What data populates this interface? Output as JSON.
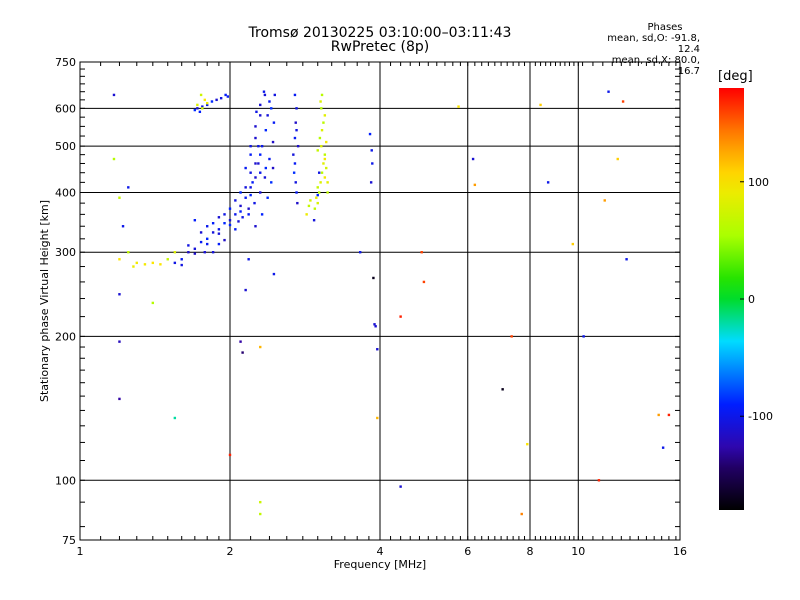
{
  "chart_data": {
    "type": "scatter",
    "title": "Tromsø 20130225 03:10:00–03:11:43",
    "subtitle": "RwPretec (8p)",
    "xlabel": "Frequency [MHz]",
    "ylabel": "Stationary phase Virtual Height [km]",
    "x_scale": "log",
    "y_scale": "log",
    "xlim": [
      1,
      16
    ],
    "ylim": [
      75,
      750
    ],
    "x_ticks": [
      1,
      2,
      4,
      6,
      8,
      10,
      16
    ],
    "y_ticks": [
      75,
      100,
      200,
      300,
      400,
      500,
      600,
      750
    ],
    "grid": true,
    "phases": {
      "heading": "Phases",
      "line_o": "mean, sd,O: -91.8, 12.4",
      "line_x": "mean, sd,X:  80.0, 16.7"
    },
    "colorbar": {
      "title": "[deg]",
      "ticks": [
        100,
        0,
        -100
      ],
      "range": [
        -180,
        180
      ]
    },
    "series": [
      {
        "trace": "O",
        "points": [
          [
            1.55,
            285
          ],
          [
            1.6,
            290
          ],
          [
            1.65,
            300
          ],
          [
            1.7,
            305
          ],
          [
            1.75,
            315
          ],
          [
            1.8,
            320
          ],
          [
            1.85,
            330
          ],
          [
            1.9,
            335
          ],
          [
            1.95,
            345
          ],
          [
            2.0,
            350
          ],
          [
            2.05,
            360
          ],
          [
            2.1,
            375
          ],
          [
            2.15,
            390
          ],
          [
            2.2,
            410
          ],
          [
            2.25,
            430
          ],
          [
            1.6,
            282
          ],
          [
            1.7,
            298
          ],
          [
            1.8,
            312
          ],
          [
            1.9,
            328
          ],
          [
            2.0,
            342
          ],
          [
            2.1,
            365
          ],
          [
            2.2,
            395
          ],
          [
            2.3,
            440
          ],
          [
            1.65,
            310
          ],
          [
            1.75,
            330
          ],
          [
            1.85,
            345
          ],
          [
            1.95,
            360
          ],
          [
            2.05,
            385
          ],
          [
            2.15,
            410
          ],
          [
            2.25,
            460
          ],
          [
            1.7,
            350
          ],
          [
            1.8,
            340
          ],
          [
            1.9,
            355
          ],
          [
            2.0,
            370
          ],
          [
            2.1,
            400
          ],
          [
            2.2,
            440
          ],
          [
            2.3,
            480
          ],
          [
            2.15,
            450
          ],
          [
            2.2,
            480
          ],
          [
            2.2,
            500
          ],
          [
            2.25,
            520
          ],
          [
            2.25,
            550
          ],
          [
            2.3,
            580
          ],
          [
            2.3,
            610
          ],
          [
            2.35,
            640
          ],
          [
            2.22,
            420
          ],
          [
            2.28,
            460
          ],
          [
            2.32,
            500
          ],
          [
            2.36,
            540
          ],
          [
            2.38,
            580
          ],
          [
            2.4,
            620
          ],
          [
            2.34,
            650
          ],
          [
            2.42,
            600
          ],
          [
            2.18,
            360
          ],
          [
            2.24,
            380
          ],
          [
            2.3,
            400
          ],
          [
            2.35,
            430
          ],
          [
            2.4,
            470
          ],
          [
            2.44,
            510
          ],
          [
            2.45,
            560
          ],
          [
            2.46,
            640
          ],
          [
            2.25,
            340
          ],
          [
            2.32,
            360
          ],
          [
            2.38,
            390
          ],
          [
            2.42,
            420
          ],
          [
            2.36,
            450
          ],
          [
            2.28,
            500
          ],
          [
            2.26,
            590
          ],
          [
            2.44,
            450
          ],
          [
            2.68,
            480
          ],
          [
            2.7,
            520
          ],
          [
            2.71,
            560
          ],
          [
            2.72,
            600
          ],
          [
            2.7,
            640
          ],
          [
            2.69,
            440
          ],
          [
            2.71,
            420
          ],
          [
            2.72,
            400
          ],
          [
            2.73,
            380
          ],
          [
            2.7,
            460
          ],
          [
            2.74,
            500
          ],
          [
            2.72,
            540
          ],
          [
            1.72,
            600
          ],
          [
            1.76,
            605
          ],
          [
            1.8,
            610
          ],
          [
            1.84,
            620
          ],
          [
            1.88,
            625
          ],
          [
            1.92,
            630
          ],
          [
            1.96,
            640
          ],
          [
            1.98,
            635
          ],
          [
            1.74,
            590
          ],
          [
            1.7,
            595
          ],
          [
            1.85,
            300
          ],
          [
            1.95,
            318
          ],
          [
            2.05,
            335
          ],
          [
            2.12,
            355
          ],
          [
            1.78,
            300
          ],
          [
            1.9,
            312
          ],
          [
            2.08,
            348
          ],
          [
            2.18,
            370
          ],
          [
            2.95,
            350
          ],
          [
            3.0,
            395
          ],
          [
            3.02,
            440
          ]
        ]
      },
      {
        "trace": "X",
        "points": [
          [
            3.0,
            380
          ],
          [
            3.02,
            400
          ],
          [
            3.04,
            420
          ],
          [
            3.06,
            440
          ],
          [
            3.08,
            460
          ],
          [
            3.1,
            480
          ],
          [
            3.05,
            500
          ],
          [
            3.03,
            520
          ],
          [
            3.06,
            540
          ],
          [
            3.08,
            560
          ],
          [
            3.1,
            580
          ],
          [
            3.05,
            600
          ],
          [
            3.04,
            620
          ],
          [
            3.06,
            640
          ],
          [
            2.98,
            390
          ],
          [
            3.0,
            410
          ],
          [
            3.1,
            430
          ],
          [
            3.12,
            450
          ],
          [
            3.1,
            470
          ],
          [
            3.0,
            490
          ],
          [
            3.12,
            510
          ],
          [
            2.96,
            370
          ],
          [
            3.14,
            400
          ],
          [
            3.14,
            420
          ],
          [
            2.85,
            360
          ],
          [
            2.88,
            375
          ],
          [
            2.9,
            385
          ],
          [
            1.75,
            640
          ],
          [
            1.78,
            625
          ],
          [
            1.8,
            615
          ],
          [
            1.76,
            600
          ],
          [
            1.72,
            610
          ],
          [
            1.25,
            300
          ],
          [
            1.3,
            285
          ],
          [
            1.35,
            283
          ],
          [
            1.4,
            285
          ],
          [
            1.45,
            283
          ],
          [
            1.5,
            290
          ],
          [
            1.55,
            300
          ],
          [
            2.3,
            90
          ],
          [
            2.3,
            85
          ]
        ]
      },
      {
        "trace": "scattered",
        "points": [
          [
            1.17,
            640,
            -110
          ],
          [
            1.17,
            470,
            60
          ],
          [
            1.2,
            390,
            70
          ],
          [
            1.25,
            410,
            -100
          ],
          [
            1.22,
            340,
            -100
          ],
          [
            1.2,
            290,
            100
          ],
          [
            1.28,
            280,
            90
          ],
          [
            1.2,
            245,
            -110
          ],
          [
            1.4,
            235,
            60
          ],
          [
            1.2,
            195,
            -120
          ],
          [
            1.2,
            148,
            -130
          ],
          [
            1.55,
            135,
            -20
          ],
          [
            2.0,
            113,
            170
          ],
          [
            2.1,
            195,
            -130
          ],
          [
            2.12,
            185,
            -140
          ],
          [
            2.15,
            250,
            -110
          ],
          [
            2.18,
            290,
            -100
          ],
          [
            2.45,
            270,
            -100
          ],
          [
            2.3,
            190,
            120
          ],
          [
            3.65,
            300,
            -100
          ],
          [
            3.82,
            530,
            -90
          ],
          [
            3.85,
            490,
            -100
          ],
          [
            3.86,
            460,
            -100
          ],
          [
            3.84,
            420,
            -110
          ],
          [
            3.88,
            265,
            -170
          ],
          [
            3.9,
            212,
            -110
          ],
          [
            3.92,
            210,
            -110
          ],
          [
            3.95,
            188,
            -110
          ],
          [
            3.95,
            135,
            120
          ],
          [
            4.4,
            220,
            170
          ],
          [
            4.4,
            97,
            -110
          ],
          [
            4.85,
            300,
            160
          ],
          [
            4.9,
            260,
            160
          ],
          [
            5.75,
            605,
            100
          ],
          [
            6.15,
            470,
            -110
          ],
          [
            6.2,
            415,
            130
          ],
          [
            7.05,
            155,
            -170
          ],
          [
            7.35,
            200,
            160
          ],
          [
            7.7,
            85,
            140
          ],
          [
            7.9,
            119,
            100
          ],
          [
            8.4,
            610,
            110
          ],
          [
            8.7,
            420,
            -100
          ],
          [
            9.75,
            312,
            110
          ],
          [
            10.25,
            200,
            -100
          ],
          [
            11.0,
            100,
            170
          ],
          [
            11.3,
            385,
            130
          ],
          [
            11.5,
            650,
            -100
          ],
          [
            12.0,
            470,
            110
          ],
          [
            12.3,
            620,
            160
          ],
          [
            12.5,
            290,
            -100
          ],
          [
            14.5,
            137,
            130
          ],
          [
            14.8,
            117,
            -100
          ],
          [
            15.2,
            137,
            170
          ]
        ]
      }
    ]
  }
}
